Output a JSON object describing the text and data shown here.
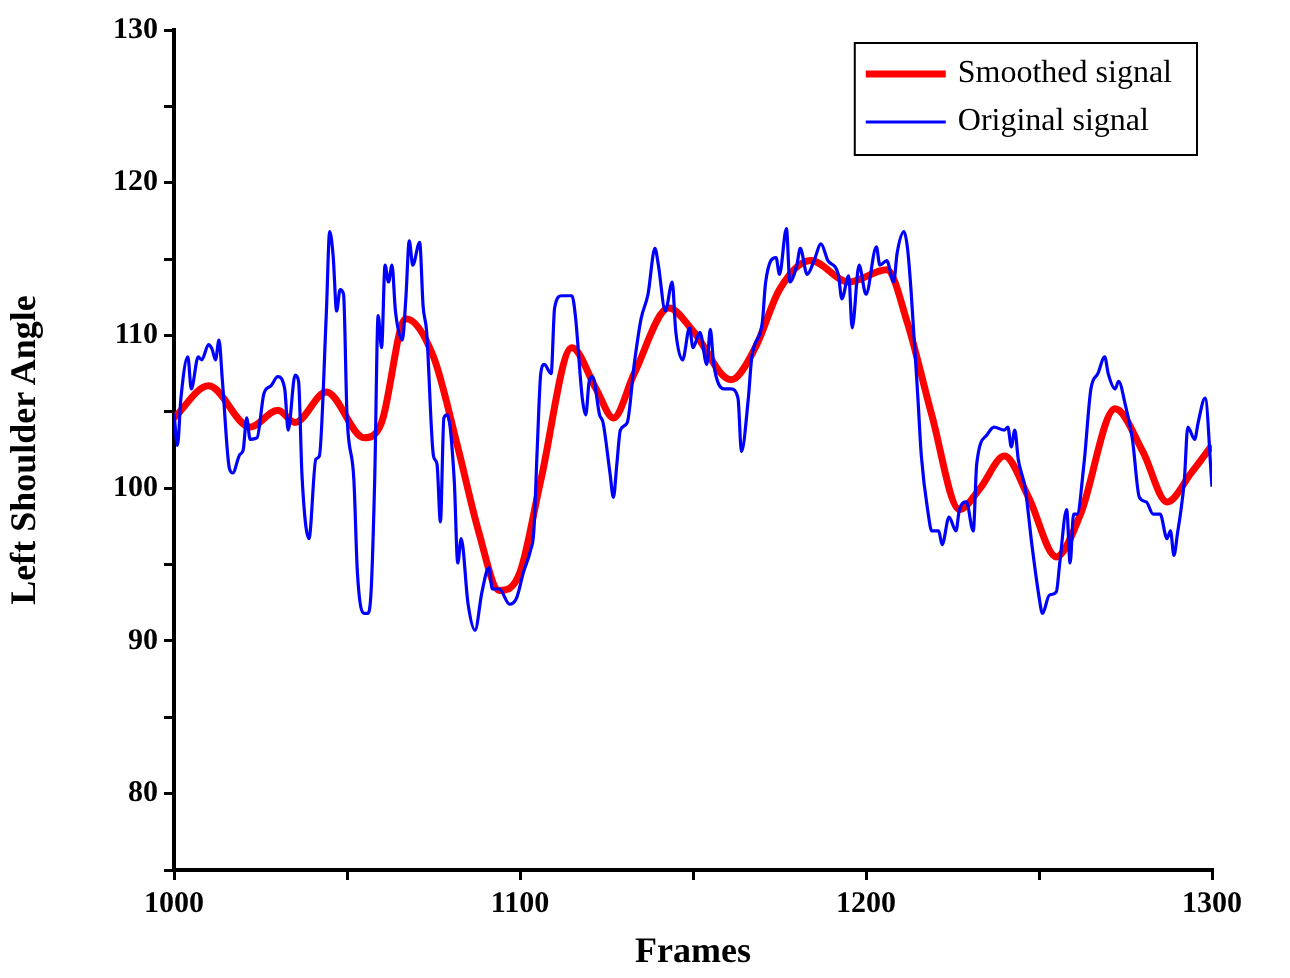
{
  "chart_data": {
    "type": "line",
    "xlabel": "Frames",
    "ylabel": "Left Shoulder Angle",
    "xlim": [
      1000,
      1300
    ],
    "ylim": [
      75,
      130
    ],
    "xticks": [
      1000,
      {
        "value": 1050,
        "label": null
      },
      1100,
      {
        "value": 1150,
        "label": null
      },
      1200,
      {
        "value": 1250,
        "label": null
      },
      1300
    ],
    "yticks": [
      {
        "value": 75,
        "label": null
      },
      80,
      {
        "value": 85,
        "label": null
      },
      90,
      {
        "value": 95,
        "label": null
      },
      100,
      {
        "value": 105,
        "label": null
      },
      110,
      {
        "value": 115,
        "label": null
      },
      120,
      {
        "value": 125,
        "label": null
      },
      130
    ],
    "grid": false,
    "legend": "top right",
    "marker": "none",
    "line_style": "solid",
    "series": [
      {
        "name": "Smoothed signal",
        "color": "#ff0000",
        "x": [
          1000,
          1010,
          1022,
          1030,
          1035,
          1044,
          1055,
          1060,
          1067,
          1075,
          1082,
          1088,
          1094,
          1100,
          1106,
          1115,
          1122,
          1127,
          1133,
          1143,
          1150,
          1161,
          1168,
          1175,
          1184,
          1195,
          1206,
          1212,
          1219,
          1227,
          1233,
          1240,
          1247,
          1255,
          1262,
          1272,
          1280,
          1287,
          1294,
          1300
        ],
        "values": [
          104.6,
          106.7,
          104.0,
          105.1,
          104.3,
          106.3,
          103.3,
          104.3,
          111.1,
          108.6,
          102.7,
          97.2,
          93.3,
          94.5,
          100.5,
          109.2,
          106.5,
          104.6,
          107.5,
          111.8,
          110.3,
          107.1,
          109.2,
          113.0,
          114.9,
          113.5,
          114.3,
          110.8,
          104.8,
          98.6,
          100.0,
          102.1,
          99.4,
          95.5,
          98.3,
          105.2,
          102.4,
          99.1,
          101.0,
          102.8
        ]
      },
      {
        "name": "Original signal",
        "color": "#0000ff",
        "x": [
          1000,
          1001,
          1002,
          1004,
          1005,
          1007,
          1008,
          1010,
          1011,
          1012,
          1013,
          1014,
          1016,
          1017,
          1019,
          1020,
          1021,
          1022,
          1024,
          1026,
          1028,
          1030,
          1032,
          1033,
          1035,
          1036,
          1037,
          1039,
          1041,
          1042,
          1044,
          1045,
          1046,
          1047,
          1048,
          1049,
          1050,
          1052,
          1053,
          1055,
          1056,
          1057,
          1058,
          1059,
          1060,
          1061,
          1062,
          1063,
          1064,
          1066,
          1067,
          1068,
          1069,
          1071,
          1072,
          1073,
          1075,
          1076,
          1077,
          1078,
          1079,
          1081,
          1082,
          1083,
          1085,
          1087,
          1089,
          1091,
          1092,
          1094,
          1097,
          1099,
          1101,
          1103,
          1104,
          1105,
          1106,
          1107,
          1109,
          1110,
          1112,
          1115,
          1116,
          1118,
          1119,
          1120,
          1121,
          1123,
          1124,
          1126,
          1127,
          1128,
          1129,
          1131,
          1133,
          1135,
          1137,
          1139,
          1140,
          1142,
          1144,
          1145,
          1147,
          1149,
          1150,
          1152,
          1154,
          1155,
          1156,
          1159,
          1161,
          1163,
          1164,
          1166,
          1167,
          1170,
          1171,
          1174,
          1175,
          1177,
          1178,
          1180,
          1181,
          1183,
          1185,
          1187,
          1189,
          1192,
          1193,
          1195,
          1196,
          1198,
          1200,
          1203,
          1204,
          1206,
          1208,
          1209,
          1211,
          1212,
          1213,
          1215,
          1216,
          1218,
          1219,
          1221,
          1222,
          1224,
          1226,
          1227,
          1229,
          1231,
          1232,
          1235,
          1237,
          1240,
          1241,
          1242,
          1243,
          1244,
          1246,
          1248,
          1250,
          1251,
          1253,
          1255,
          1256,
          1258,
          1259,
          1260,
          1261,
          1263,
          1265,
          1267,
          1269,
          1270,
          1272,
          1273,
          1275,
          1277,
          1279,
          1281,
          1283,
          1285,
          1287,
          1288,
          1289,
          1290,
          1292,
          1293,
          1295,
          1296,
          1298,
          1300
        ],
        "values": [
          104.9,
          102.8,
          105.9,
          108.6,
          106.5,
          108.6,
          108.4,
          109.4,
          109.1,
          108.4,
          109.7,
          107.0,
          101.3,
          101.0,
          102.2,
          102.5,
          104.6,
          103.2,
          103.3,
          106.2,
          106.7,
          107.3,
          106.5,
          103.8,
          107.4,
          107.0,
          100.8,
          96.7,
          101.9,
          102.1,
          111.3,
          116.8,
          115.2,
          111.6,
          113.0,
          112.7,
          104.8,
          100.5,
          94.5,
          91.8,
          91.8,
          93.4,
          100.5,
          111.3,
          109.2,
          114.6,
          113.5,
          114.6,
          111.6,
          109.7,
          112.4,
          116.2,
          114.6,
          116.1,
          111.9,
          110.3,
          102.1,
          101.6,
          97.8,
          104.6,
          104.8,
          100.5,
          95.1,
          96.7,
          92.4,
          90.7,
          93.2,
          94.8,
          93.4,
          93.4,
          92.4,
          92.8,
          94.5,
          95.9,
          97.2,
          102.7,
          107.5,
          108.1,
          107.5,
          111.8,
          112.6,
          112.6,
          111.3,
          105.9,
          104.8,
          107.0,
          107.3,
          104.8,
          104.3,
          101.0,
          99.4,
          101.6,
          103.8,
          104.3,
          108.1,
          111.1,
          112.7,
          115.7,
          114.6,
          111.6,
          113.5,
          110.3,
          108.4,
          110.5,
          109.2,
          110.2,
          108.1,
          110.4,
          108.1,
          106.5,
          106.5,
          105.9,
          102.4,
          105.9,
          108.6,
          110.8,
          113.5,
          115.1,
          114.0,
          117.0,
          113.5,
          114.6,
          115.7,
          114.0,
          114.9,
          116.0,
          114.9,
          114.0,
          112.4,
          113.9,
          110.5,
          114.6,
          112.7,
          115.8,
          114.6,
          114.9,
          113.5,
          115.4,
          116.8,
          115.7,
          113.0,
          105.9,
          102.1,
          98.3,
          97.2,
          97.2,
          96.3,
          98.1,
          97.2,
          98.6,
          99.1,
          97.2,
          101.6,
          103.5,
          104.0,
          103.8,
          104.0,
          102.7,
          103.8,
          101.9,
          100.0,
          96.2,
          92.9,
          91.8,
          93.0,
          93.2,
          95.1,
          98.6,
          95.1,
          98.3,
          98.3,
          101.6,
          106.5,
          107.5,
          108.6,
          107.5,
          106.5,
          107.0,
          105.4,
          103.2,
          99.4,
          99.1,
          98.3,
          98.3,
          96.7,
          97.2,
          95.6,
          97.0,
          100.5,
          104.0,
          103.2,
          104.3,
          105.9,
          100.1
        ]
      }
    ]
  }
}
